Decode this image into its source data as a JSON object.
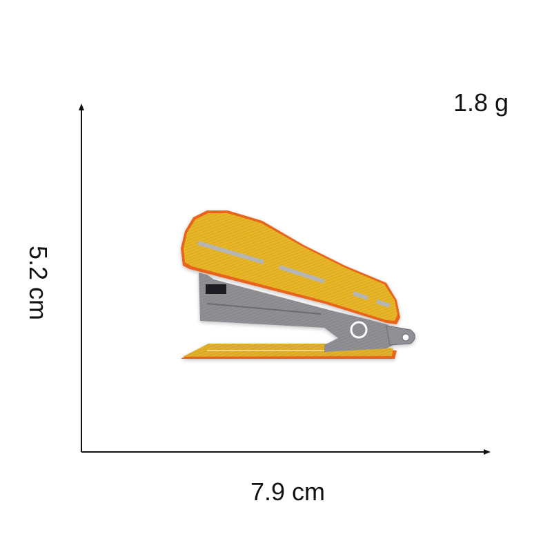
{
  "dimensions": {
    "weight": "1.8 g",
    "width": "7.9 cm",
    "height": "5.2 cm"
  },
  "product": {
    "illustration": "stapler-embroidered-patch-icon",
    "colors": {
      "top": "#e8b625",
      "top_shade": "#c99a10",
      "body": "#8f8f95",
      "body_dark": "#6b6b70",
      "base": "#e2b12a",
      "edge": "#e8641a",
      "slot": "#b5b5b5"
    }
  }
}
